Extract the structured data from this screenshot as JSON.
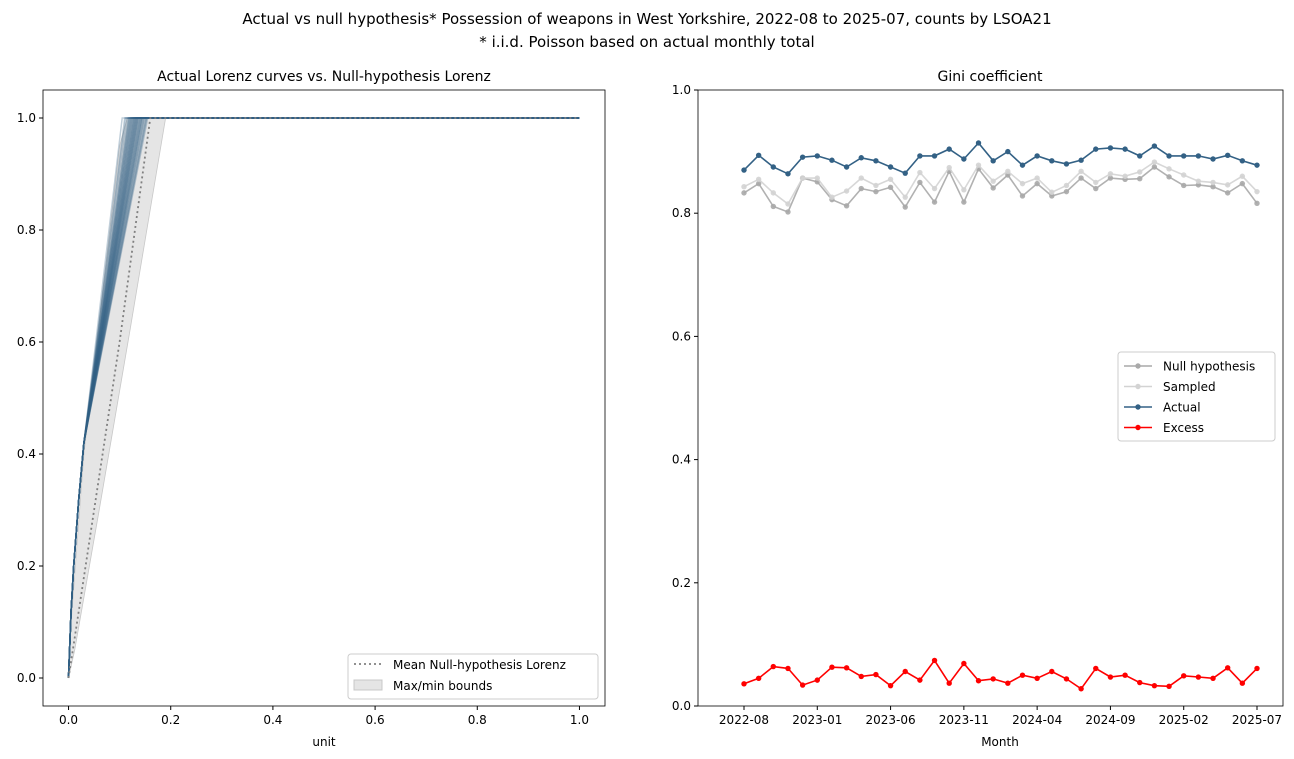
{
  "figure": {
    "title_line1": "Actual vs null hypothesis* Possession of weapons in West Yorkshire, 2022-08 to 2025-07, counts by LSOA21",
    "title_line2": "* i.i.d.  Poisson based on actual monthly total"
  },
  "chart_data": [
    {
      "type": "line",
      "title": "Actual Lorenz curves vs. Null-hypothesis Lorenz",
      "xlabel": "unit",
      "ylabel": "",
      "xlim": [
        -0.05,
        1.05
      ],
      "ylim": [
        -0.05,
        1.05
      ],
      "xticks": [
        "0.0",
        "0.2",
        "0.4",
        "0.6",
        "0.8",
        "1.0"
      ],
      "yticks": [
        "0.0",
        "0.2",
        "0.4",
        "0.6",
        "0.8",
        "1.0"
      ],
      "grid": false,
      "legend_position": "bottom-right",
      "colors": {
        "actual": "#336185",
        "mean_null": "#808080",
        "bounds": "#d3d3d3"
      },
      "mean_null_lorenz": {
        "name": "Mean Null-hypothesis Lorenz",
        "points": [
          [
            0,
            0
          ],
          [
            0.01,
            0.06
          ],
          [
            0.05,
            0.3
          ],
          [
            0.1,
            0.6
          ],
          [
            0.16,
            1.0
          ],
          [
            1,
            1
          ]
        ]
      },
      "bounds": {
        "name": "Max/min bounds",
        "upper": [
          [
            0,
            0
          ],
          [
            0.005,
            0.1
          ],
          [
            0.03,
            0.4
          ],
          [
            0.1,
            0.95
          ],
          [
            0.115,
            1.0
          ],
          [
            1,
            1
          ]
        ],
        "lower": [
          [
            0,
            0
          ],
          [
            0.012,
            0.05
          ],
          [
            0.06,
            0.3
          ],
          [
            0.12,
            0.62
          ],
          [
            0.19,
            1.0
          ],
          [
            1,
            1
          ]
        ]
      },
      "actual_curves_end_x": [
        0.105,
        0.11,
        0.112,
        0.115,
        0.118,
        0.12,
        0.122,
        0.124,
        0.126,
        0.128,
        0.13,
        0.131,
        0.132,
        0.134,
        0.135,
        0.137,
        0.138,
        0.14,
        0.142,
        0.144,
        0.145,
        0.147,
        0.148,
        0.15,
        0.152,
        0.153,
        0.155,
        0.118,
        0.124,
        0.129,
        0.133,
        0.136,
        0.14,
        0.143,
        0.127,
        0.121
      ],
      "actual_curve_shape": [
        [
          0,
          0
        ],
        [
          0.005,
          0.12
        ],
        [
          0.01,
          0.2
        ],
        [
          0.02,
          0.32
        ],
        [
          0.03,
          0.42
        ]
      ]
    },
    {
      "type": "line",
      "title": "Gini coefficient",
      "xlabel": "Month",
      "ylabel": "",
      "ylim": [
        0.0,
        1.0
      ],
      "yticks": [
        "0.0",
        "0.2",
        "0.4",
        "0.6",
        "0.8",
        "1.0"
      ],
      "xticks": [
        "2022-08",
        "2023-01",
        "2023-06",
        "2023-11",
        "2024-04",
        "2024-09",
        "2025-02",
        "2025-07"
      ],
      "grid": false,
      "legend_position": "center-right",
      "x": [
        "2022-08",
        "2022-09",
        "2022-10",
        "2022-11",
        "2022-12",
        "2023-01",
        "2023-02",
        "2023-03",
        "2023-04",
        "2023-05",
        "2023-06",
        "2023-07",
        "2023-08",
        "2023-09",
        "2023-10",
        "2023-11",
        "2023-12",
        "2024-01",
        "2024-02",
        "2024-03",
        "2024-04",
        "2024-05",
        "2024-06",
        "2024-07",
        "2024-08",
        "2024-09",
        "2024-10",
        "2024-11",
        "2024-12",
        "2025-01",
        "2025-02",
        "2025-03",
        "2025-04",
        "2025-05",
        "2025-06",
        "2025-07"
      ],
      "series": [
        {
          "name": "Null hypothesis",
          "color": "#a9a9a9",
          "values": [
            0.833,
            0.848,
            0.811,
            0.802,
            0.857,
            0.851,
            0.822,
            0.812,
            0.84,
            0.835,
            0.842,
            0.81,
            0.85,
            0.818,
            0.868,
            0.818,
            0.872,
            0.841,
            0.862,
            0.828,
            0.848,
            0.828,
            0.835,
            0.857,
            0.84,
            0.857,
            0.855,
            0.856,
            0.875,
            0.859,
            0.845,
            0.846,
            0.843,
            0.833,
            0.848,
            0.816
          ]
        },
        {
          "name": "Sampled",
          "color": "#d3d3d3",
          "values": [
            0.843,
            0.855,
            0.833,
            0.815,
            0.857,
            0.857,
            0.826,
            0.836,
            0.857,
            0.845,
            0.855,
            0.826,
            0.866,
            0.84,
            0.874,
            0.838,
            0.878,
            0.852,
            0.868,
            0.848,
            0.857,
            0.834,
            0.845,
            0.868,
            0.85,
            0.864,
            0.86,
            0.867,
            0.883,
            0.872,
            0.862,
            0.852,
            0.85,
            0.846,
            0.86,
            0.835
          ]
        },
        {
          "name": "Actual",
          "color": "#336185",
          "values": [
            0.87,
            0.894,
            0.875,
            0.864,
            0.891,
            0.893,
            0.886,
            0.875,
            0.89,
            0.885,
            0.875,
            0.865,
            0.893,
            0.893,
            0.904,
            0.888,
            0.914,
            0.885,
            0.9,
            0.878,
            0.893,
            0.885,
            0.88,
            0.886,
            0.904,
            0.906,
            0.904,
            0.893,
            0.909,
            0.893,
            0.893,
            0.893,
            0.888,
            0.894,
            0.885,
            0.878
          ]
        },
        {
          "name": "Excess",
          "color": "#ff0000",
          "values": [
            0.036,
            0.045,
            0.064,
            0.061,
            0.034,
            0.042,
            0.063,
            0.062,
            0.048,
            0.051,
            0.033,
            0.056,
            0.042,
            0.074,
            0.037,
            0.069,
            0.041,
            0.044,
            0.037,
            0.05,
            0.045,
            0.056,
            0.044,
            0.028,
            0.061,
            0.047,
            0.05,
            0.038,
            0.033,
            0.032,
            0.049,
            0.047,
            0.045,
            0.062,
            0.037,
            0.061
          ]
        }
      ]
    }
  ]
}
